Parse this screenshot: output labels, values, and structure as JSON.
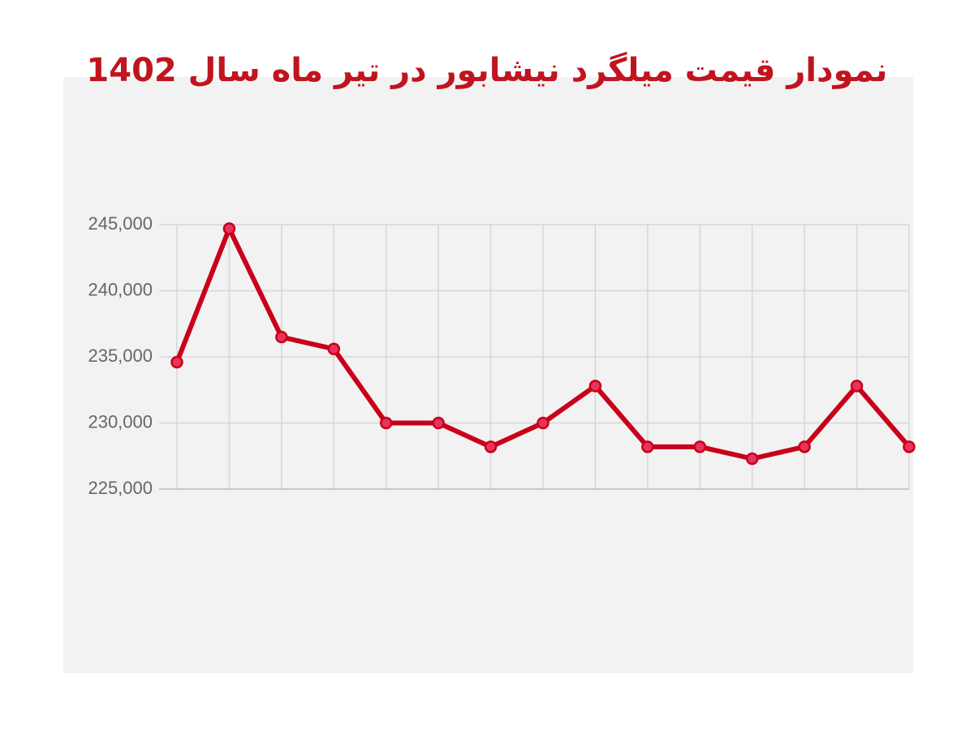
{
  "chart_data": {
    "type": "line",
    "title": "نمودار قیمت میلگرد نیشابور در تیر ماه سال 1402",
    "values": [
      234600,
      244700,
      236500,
      235600,
      230000,
      230000,
      228200,
      230000,
      232800,
      228200,
      228200,
      227300,
      228200,
      232800,
      228200
    ],
    "color": "#c8001a",
    "marker_color": "#e8335c",
    "ylim": [
      225000,
      245000
    ],
    "yticks": [
      {
        "value": 225000,
        "label": "225,000"
      },
      {
        "value": 230000,
        "label": "230,000"
      },
      {
        "value": 235000,
        "label": "235,000"
      },
      {
        "value": 240000,
        "label": "240,000"
      },
      {
        "value": 245000,
        "label": "245,000"
      }
    ],
    "grid": true
  }
}
